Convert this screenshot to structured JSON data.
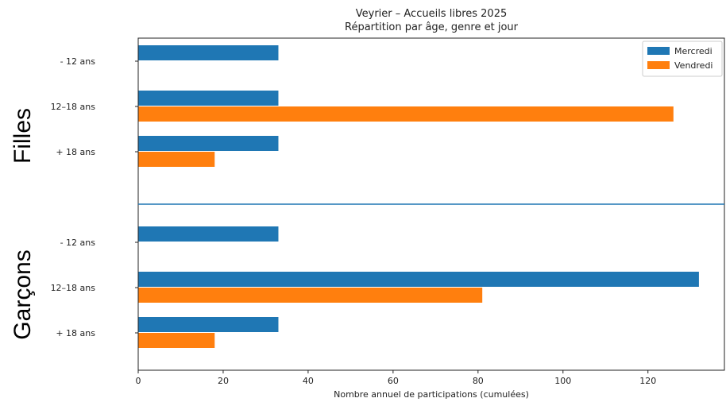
{
  "chart_data": {
    "type": "bar",
    "orientation": "horizontal",
    "title": [
      "Veyrier – Accueils libres 2025",
      "Répartition par âge, genre et jour"
    ],
    "xlabel": "Nombre annuel de participations (cumulées)",
    "xlim": [
      0,
      138
    ],
    "xticks": [
      0,
      20,
      40,
      60,
      80,
      100,
      120
    ],
    "grid": false,
    "legend_position": "top-right",
    "groups": [
      {
        "label": "Filles",
        "categories": [
          "- 12 ans",
          "12–18 ans",
          "+ 18 ans"
        ],
        "series": [
          {
            "name": "Mercredi",
            "color": "#1f77b4",
            "values": [
              33,
              33,
              33
            ]
          },
          {
            "name": "Vendredi",
            "color": "#ff7f0e",
            "values": [
              0,
              126,
              18
            ]
          }
        ]
      },
      {
        "label": "Garçons",
        "categories": [
          "- 12 ans",
          "12–18 ans",
          "+ 18 ans"
        ],
        "series": [
          {
            "name": "Mercredi",
            "color": "#1f77b4",
            "values": [
              33,
              132,
              33
            ]
          },
          {
            "name": "Vendredi",
            "color": "#ff7f0e",
            "values": [
              0,
              81,
              18
            ]
          }
        ]
      }
    ],
    "legend": [
      {
        "name": "Mercredi",
        "color": "#1f77b4"
      },
      {
        "name": "Vendredi",
        "color": "#ff7f0e"
      }
    ],
    "separator_color": "#1f77b4"
  }
}
